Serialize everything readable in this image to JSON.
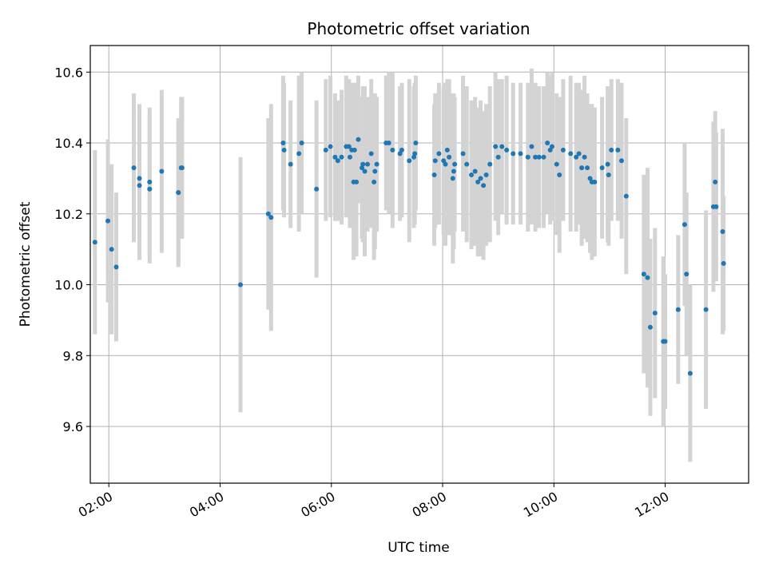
{
  "chart_data": {
    "type": "scatter",
    "title": "Photometric offset variation",
    "xlabel": "UTC time",
    "ylabel": "Photometric offset",
    "xlim": [
      "01:40",
      "13:30"
    ],
    "ylim": [
      9.44,
      10.675
    ],
    "x_ticks": [
      "02:00",
      "04:00",
      "06:00",
      "08:00",
      "10:00",
      "12:00"
    ],
    "y_ticks": [
      "9.6",
      "9.8",
      "10.0",
      "10.2",
      "10.4",
      "10.6"
    ],
    "grid": true,
    "legend": "none",
    "marker_color": "#1f77b4",
    "errorbar_color": "#d3d3d3",
    "points": [
      [
        "01:45",
        10.12,
        0.26
      ],
      [
        "01:59",
        10.18,
        0.23
      ],
      [
        "02:03",
        10.1,
        0.24
      ],
      [
        "02:08",
        10.05,
        0.21
      ],
      [
        "02:27",
        10.33,
        0.21
      ],
      [
        "02:33",
        10.28,
        0.21
      ],
      [
        "02:33",
        10.3,
        0.21
      ],
      [
        "02:44",
        10.29,
        0.21
      ],
      [
        "02:44",
        10.27,
        0.21
      ],
      [
        "02:57",
        10.32,
        0.23
      ],
      [
        "03:15",
        10.26,
        0.21
      ],
      [
        "03:15",
        10.26,
        0.2
      ],
      [
        "03:18",
        10.33,
        0.2
      ],
      [
        "03:19",
        10.33,
        0.2
      ],
      [
        "04:22",
        10.0,
        0.36
      ],
      [
        "04:52",
        10.2,
        0.27
      ],
      [
        "04:55",
        10.19,
        0.32
      ],
      [
        "05:08",
        10.4,
        0.19
      ],
      [
        "05:09",
        10.38,
        0.19
      ],
      [
        "05:16",
        10.34,
        0.18
      ],
      [
        "05:25",
        10.37,
        0.22
      ],
      [
        "05:28",
        10.4,
        0.2
      ],
      [
        "05:44",
        10.27,
        0.25
      ],
      [
        "05:54",
        10.38,
        0.2
      ],
      [
        "05:59",
        10.39,
        0.2
      ],
      [
        "06:04",
        10.36,
        0.18
      ],
      [
        "06:07",
        10.35,
        0.17
      ],
      [
        "06:11",
        10.36,
        0.19
      ],
      [
        "06:16",
        10.39,
        0.2
      ],
      [
        "06:19",
        10.39,
        0.19
      ],
      [
        "06:20",
        10.36,
        0.2
      ],
      [
        "06:22",
        10.38,
        0.19
      ],
      [
        "06:24",
        10.29,
        0.22
      ],
      [
        "06:25",
        10.38,
        0.19
      ],
      [
        "06:27",
        10.29,
        0.21
      ],
      [
        "06:29",
        10.41,
        0.18
      ],
      [
        "06:33",
        10.33,
        0.2
      ],
      [
        "06:34",
        10.34,
        0.22
      ],
      [
        "06:36",
        10.32,
        0.24
      ],
      [
        "06:39",
        10.34,
        0.19
      ],
      [
        "06:43",
        10.37,
        0.21
      ],
      [
        "06:46",
        10.29,
        0.22
      ],
      [
        "06:47",
        10.32,
        0.22
      ],
      [
        "06:49",
        10.34,
        0.19
      ],
      [
        "06:59",
        10.4,
        0.19
      ],
      [
        "07:02",
        10.4,
        0.2
      ],
      [
        "07:06",
        10.38,
        0.22
      ],
      [
        "07:14",
        10.37,
        0.19
      ],
      [
        "07:16",
        10.38,
        0.19
      ],
      [
        "07:24",
        10.35,
        0.23
      ],
      [
        "07:29",
        10.36,
        0.2
      ],
      [
        "07:30",
        10.37,
        0.2
      ],
      [
        "07:31",
        10.4,
        0.19
      ],
      [
        "07:51",
        10.31,
        0.2
      ],
      [
        "07:52",
        10.35,
        0.19
      ],
      [
        "07:56",
        10.37,
        0.2
      ],
      [
        "08:01",
        10.35,
        0.21
      ],
      [
        "08:03",
        10.34,
        0.23
      ],
      [
        "08:05",
        10.38,
        0.2
      ],
      [
        "08:07",
        10.36,
        0.22
      ],
      [
        "08:11",
        10.3,
        0.24
      ],
      [
        "08:12",
        10.32,
        0.22
      ],
      [
        "08:13",
        10.34,
        0.19
      ],
      [
        "08:22",
        10.37,
        0.22
      ],
      [
        "08:26",
        10.34,
        0.22
      ],
      [
        "08:31",
        10.31,
        0.21
      ],
      [
        "08:35",
        10.32,
        0.21
      ],
      [
        "08:38",
        10.29,
        0.21
      ],
      [
        "08:41",
        10.3,
        0.22
      ],
      [
        "08:44",
        10.28,
        0.21
      ],
      [
        "08:47",
        10.31,
        0.2
      ],
      [
        "08:51",
        10.34,
        0.22
      ],
      [
        "08:57",
        10.39,
        0.21
      ],
      [
        "09:00",
        10.36,
        0.22
      ],
      [
        "09:04",
        10.39,
        0.19
      ],
      [
        "09:09",
        10.38,
        0.21
      ],
      [
        "09:16",
        10.37,
        0.2
      ],
      [
        "09:24",
        10.37,
        0.2
      ],
      [
        "09:32",
        10.36,
        0.21
      ],
      [
        "09:36",
        10.39,
        0.22
      ],
      [
        "09:40",
        10.36,
        0.21
      ],
      [
        "09:44",
        10.36,
        0.2
      ],
      [
        "09:49",
        10.36,
        0.2
      ],
      [
        "09:53",
        10.4,
        0.2
      ],
      [
        "09:56",
        10.38,
        0.21
      ],
      [
        "09:58",
        10.39,
        0.21
      ],
      [
        "10:03",
        10.34,
        0.2
      ],
      [
        "10:06",
        10.31,
        0.22
      ],
      [
        "10:10",
        10.38,
        0.2
      ],
      [
        "10:18",
        10.37,
        0.22
      ],
      [
        "10:24",
        10.36,
        0.21
      ],
      [
        "10:27",
        10.37,
        0.2
      ],
      [
        "10:30",
        10.33,
        0.22
      ],
      [
        "10:33",
        10.36,
        0.23
      ],
      [
        "10:36",
        10.33,
        0.21
      ],
      [
        "10:39",
        10.3,
        0.21
      ],
      [
        "10:41",
        10.29,
        0.22
      ],
      [
        "10:44",
        10.29,
        0.21
      ],
      [
        "10:52",
        10.33,
        0.2
      ],
      [
        "10:58",
        10.34,
        0.22
      ],
      [
        "10:59",
        10.31,
        0.2
      ],
      [
        "11:02",
        10.38,
        0.2
      ],
      [
        "11:09",
        10.38,
        0.2
      ],
      [
        "11:13",
        10.35,
        0.22
      ],
      [
        "11:18",
        10.25,
        0.22
      ],
      [
        "11:37",
        10.03,
        0.28
      ],
      [
        "11:41",
        10.02,
        0.31
      ],
      [
        "11:44",
        9.88,
        0.25
      ],
      [
        "11:49",
        9.92,
        0.24
      ],
      [
        "11:58",
        9.84,
        0.24
      ],
      [
        "12:00",
        9.84,
        0.19
      ],
      [
        "12:14",
        9.93,
        0.21
      ],
      [
        "12:21",
        10.17,
        0.23
      ],
      [
        "12:23",
        10.03,
        0.23
      ],
      [
        "12:27",
        9.75,
        0.25
      ],
      [
        "12:44",
        9.93,
        0.28
      ],
      [
        "12:52",
        10.22,
        0.24
      ],
      [
        "12:54",
        10.29,
        0.2
      ],
      [
        "12:55",
        10.22,
        0.21
      ],
      [
        "13:02",
        10.15,
        0.29
      ],
      [
        "13:03",
        10.06,
        0.19
      ]
    ]
  }
}
